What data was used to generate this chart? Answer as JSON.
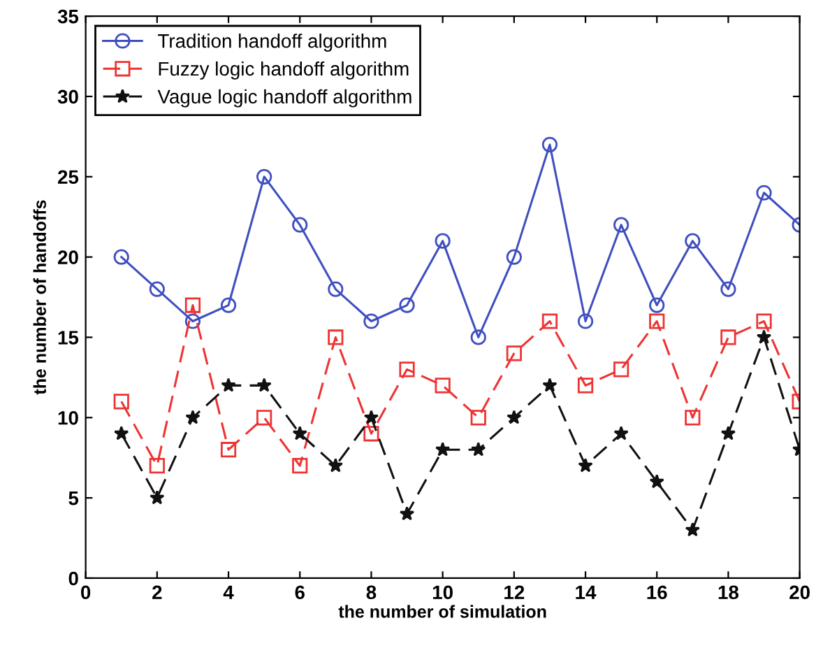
{
  "chart_data": {
    "type": "line",
    "xlabel": "the number of simulation",
    "ylabel": "the number of handoffs",
    "x": [
      1,
      2,
      3,
      4,
      5,
      6,
      7,
      8,
      9,
      10,
      11,
      12,
      13,
      14,
      15,
      16,
      17,
      18,
      19,
      20
    ],
    "series": [
      {
        "name": "Tradition handoff algorithm",
        "color": "#3f4fbf",
        "marker": "circle",
        "line_style": "solid",
        "values": [
          20,
          18,
          16,
          17,
          25,
          22,
          18,
          16,
          17,
          21,
          15,
          20,
          27,
          16,
          22,
          17,
          21,
          18,
          24,
          22
        ]
      },
      {
        "name": "Fuzzy logic handoff algorithm",
        "color": "#ee3333",
        "marker": "square",
        "line_style": "dashed",
        "values": [
          11,
          7,
          17,
          8,
          10,
          7,
          15,
          9,
          13,
          12,
          10,
          14,
          16,
          12,
          13,
          16,
          10,
          15,
          16,
          11
        ]
      },
      {
        "name": "Vague logic handoff algorithm",
        "color": "#111111",
        "marker": "star",
        "line_style": "dashed",
        "values": [
          9,
          5,
          10,
          12,
          12,
          9,
          7,
          10,
          4,
          8,
          8,
          10,
          12,
          7,
          9,
          6,
          3,
          9,
          15,
          8
        ]
      }
    ],
    "xlim": [
      0,
      20
    ],
    "xticks": [
      0,
      2,
      4,
      6,
      8,
      10,
      12,
      14,
      16,
      18,
      20
    ],
    "ylim": [
      0,
      35
    ],
    "yticks": [
      0,
      5,
      10,
      15,
      20,
      25,
      30,
      35
    ],
    "grid": false,
    "legend": "top left"
  }
}
